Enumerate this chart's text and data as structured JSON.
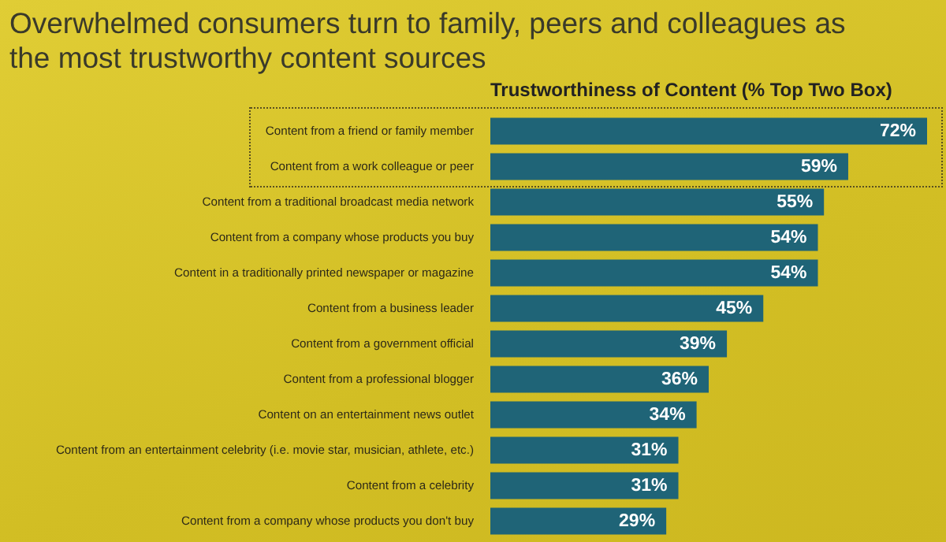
{
  "chart_data": {
    "type": "bar",
    "orientation": "horizontal",
    "title": "Overwhelmed consumers turn to family, peers and colleagues as the most trustworthy content sources",
    "subtitle": "Trustworthiness of Content (% Top Two Box)",
    "categories": [
      "Content from a friend or family member",
      "Content from a work colleague or peer",
      "Content from a traditional broadcast media network",
      "Content from a company whose products you buy",
      "Content in a traditionally printed newspaper or magazine",
      "Content from a business leader",
      "Content from a government official",
      "Content from a professional blogger",
      "Content on an entertainment news outlet",
      "Content from an entertainment celebrity (i.e. movie star, musician, athlete, etc.)",
      "Content from a celebrity",
      "Content from a company whose products you don't buy"
    ],
    "values": [
      72,
      59,
      55,
      54,
      54,
      45,
      39,
      36,
      34,
      31,
      31,
      29
    ],
    "value_labels": [
      "72%",
      "59%",
      "55%",
      "54%",
      "54%",
      "45%",
      "39%",
      "36%",
      "34%",
      "31%",
      "31%",
      "29%"
    ],
    "color": "#1f6477"
  }
}
